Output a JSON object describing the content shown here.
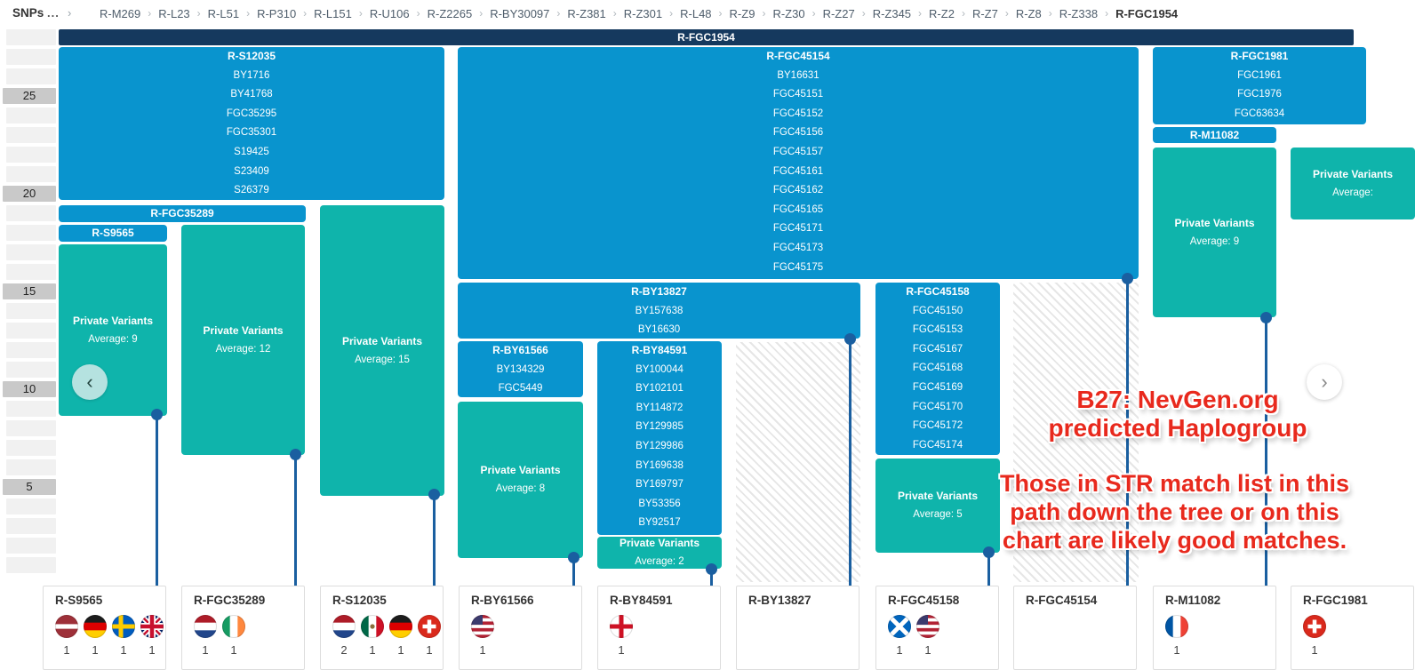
{
  "topbar": {
    "snps_label": "SNPs",
    "overflow_label": "...",
    "breadcrumb": [
      "R-M269",
      "R-L23",
      "R-L51",
      "R-P310",
      "R-L151",
      "R-U106",
      "R-Z2265",
      "R-BY30097",
      "R-Z381",
      "R-Z301",
      "R-L48",
      "R-Z9",
      "R-Z30",
      "R-Z27",
      "R-Z345",
      "R-Z2",
      "R-Z7",
      "R-Z8",
      "R-Z338",
      "R-FGC1954"
    ]
  },
  "root": {
    "label": "R-FGC1954"
  },
  "axis": {
    "row_count": 28,
    "labels": {
      "3": "25",
      "8": "20",
      "13": "15",
      "18": "10",
      "23": "5"
    }
  },
  "blocks": [
    {
      "id": "s12035",
      "kind": "snps",
      "snps": [
        "R-S12035",
        "BY1716",
        "BY41768",
        "FGC35295",
        "FGC35301",
        "S19425",
        "S23409",
        "S26379"
      ]
    },
    {
      "id": "fgc45154",
      "kind": "snps",
      "snps": [
        "R-FGC45154",
        "BY16631",
        "FGC45151",
        "FGC45152",
        "FGC45156",
        "FGC45157",
        "FGC45161",
        "FGC45162",
        "FGC45165",
        "FGC45171",
        "FGC45173",
        "FGC45175"
      ]
    },
    {
      "id": "fgc1981",
      "kind": "snps",
      "snps": [
        "R-FGC1981",
        "FGC1961",
        "FGC1976",
        "FGC63634"
      ]
    },
    {
      "id": "fgc35289",
      "kind": "bar",
      "snps": [
        "R-FGC35289"
      ]
    },
    {
      "id": "s9565",
      "kind": "bar",
      "snps": [
        "R-S9565"
      ]
    },
    {
      "id": "m11082",
      "kind": "bar",
      "snps": [
        "R-M11082"
      ]
    },
    {
      "id": "by13827",
      "kind": "snps",
      "snps": [
        "R-BY13827",
        "BY157638",
        "BY16630"
      ]
    },
    {
      "id": "by61566",
      "kind": "snps",
      "snps": [
        "R-BY61566",
        "BY134329",
        "FGC5449"
      ]
    },
    {
      "id": "by84591",
      "kind": "snps",
      "snps": [
        "R-BY84591",
        "BY100044",
        "BY102101",
        "BY114872",
        "BY129985",
        "BY129986",
        "BY169638",
        "BY169797",
        "BY53356",
        "BY92517"
      ]
    },
    {
      "id": "fgc45158",
      "kind": "snps",
      "snps": [
        "R-FGC45158",
        "FGC45150",
        "FGC45153",
        "FGC45167",
        "FGC45168",
        "FGC45169",
        "FGC45170",
        "FGC45172",
        "FGC45174"
      ]
    },
    {
      "id": "pv-s9565",
      "kind": "private",
      "label": "Private Variants",
      "average": "Average: 9"
    },
    {
      "id": "pv-fgc35289",
      "kind": "private",
      "label": "Private Variants",
      "average": "Average: 12"
    },
    {
      "id": "pv-s12035",
      "kind": "private",
      "label": "Private Variants",
      "average": "Average: 15"
    },
    {
      "id": "pv-by61566",
      "kind": "private",
      "label": "Private Variants",
      "average": "Average: 8"
    },
    {
      "id": "pv-by84591",
      "kind": "private",
      "label": "Private Variants",
      "average": "Average: 2"
    },
    {
      "id": "pv-fgc45158",
      "kind": "private",
      "label": "Private Variants",
      "average": "Average: 5"
    },
    {
      "id": "pv-m11082",
      "kind": "private",
      "label": "Private Variants",
      "average": "Average: 9"
    },
    {
      "id": "pv-right",
      "kind": "private",
      "label": "Private Variants",
      "average": "Average:"
    }
  ],
  "annotation": {
    "line1": "B27: NevGen.org",
    "line2": "predicted Haplogroup",
    "line3": "Those in STR match list in this",
    "line4": "path down the tree or on this",
    "line5": "chart are likely good matches."
  },
  "nav": {
    "prev": "‹",
    "next": "›"
  },
  "cards": [
    {
      "name": "R-S9565",
      "flags": [
        {
          "country": "latvia",
          "count": "1"
        },
        {
          "country": "germany",
          "count": "1"
        },
        {
          "country": "sweden",
          "count": "1"
        },
        {
          "country": "united-kingdom",
          "count": "1"
        }
      ]
    },
    {
      "name": "R-FGC35289",
      "flags": [
        {
          "country": "netherlands",
          "count": "1"
        },
        {
          "country": "ireland",
          "count": "1"
        }
      ]
    },
    {
      "name": "R-S12035",
      "flags": [
        {
          "country": "netherlands",
          "count": "2"
        },
        {
          "country": "mexico",
          "count": "1"
        },
        {
          "country": "germany",
          "count": "1"
        },
        {
          "country": "switzerland",
          "count": "1"
        }
      ]
    },
    {
      "name": "R-BY61566",
      "flags": [
        {
          "country": "united-states",
          "count": "1"
        }
      ]
    },
    {
      "name": "R-BY84591",
      "flags": [
        {
          "country": "england",
          "count": "1"
        }
      ]
    },
    {
      "name": "R-BY13827",
      "flags": []
    },
    {
      "name": "R-FGC45158",
      "flags": [
        {
          "country": "scotland",
          "count": "1"
        },
        {
          "country": "united-states",
          "count": "1"
        }
      ]
    },
    {
      "name": "R-FGC45154",
      "flags": []
    },
    {
      "name": "R-M11082",
      "flags": [
        {
          "country": "france",
          "count": "1"
        }
      ]
    },
    {
      "name": "R-FGC1981",
      "flags": [
        {
          "country": "switzerland",
          "count": "1"
        }
      ]
    }
  ]
}
